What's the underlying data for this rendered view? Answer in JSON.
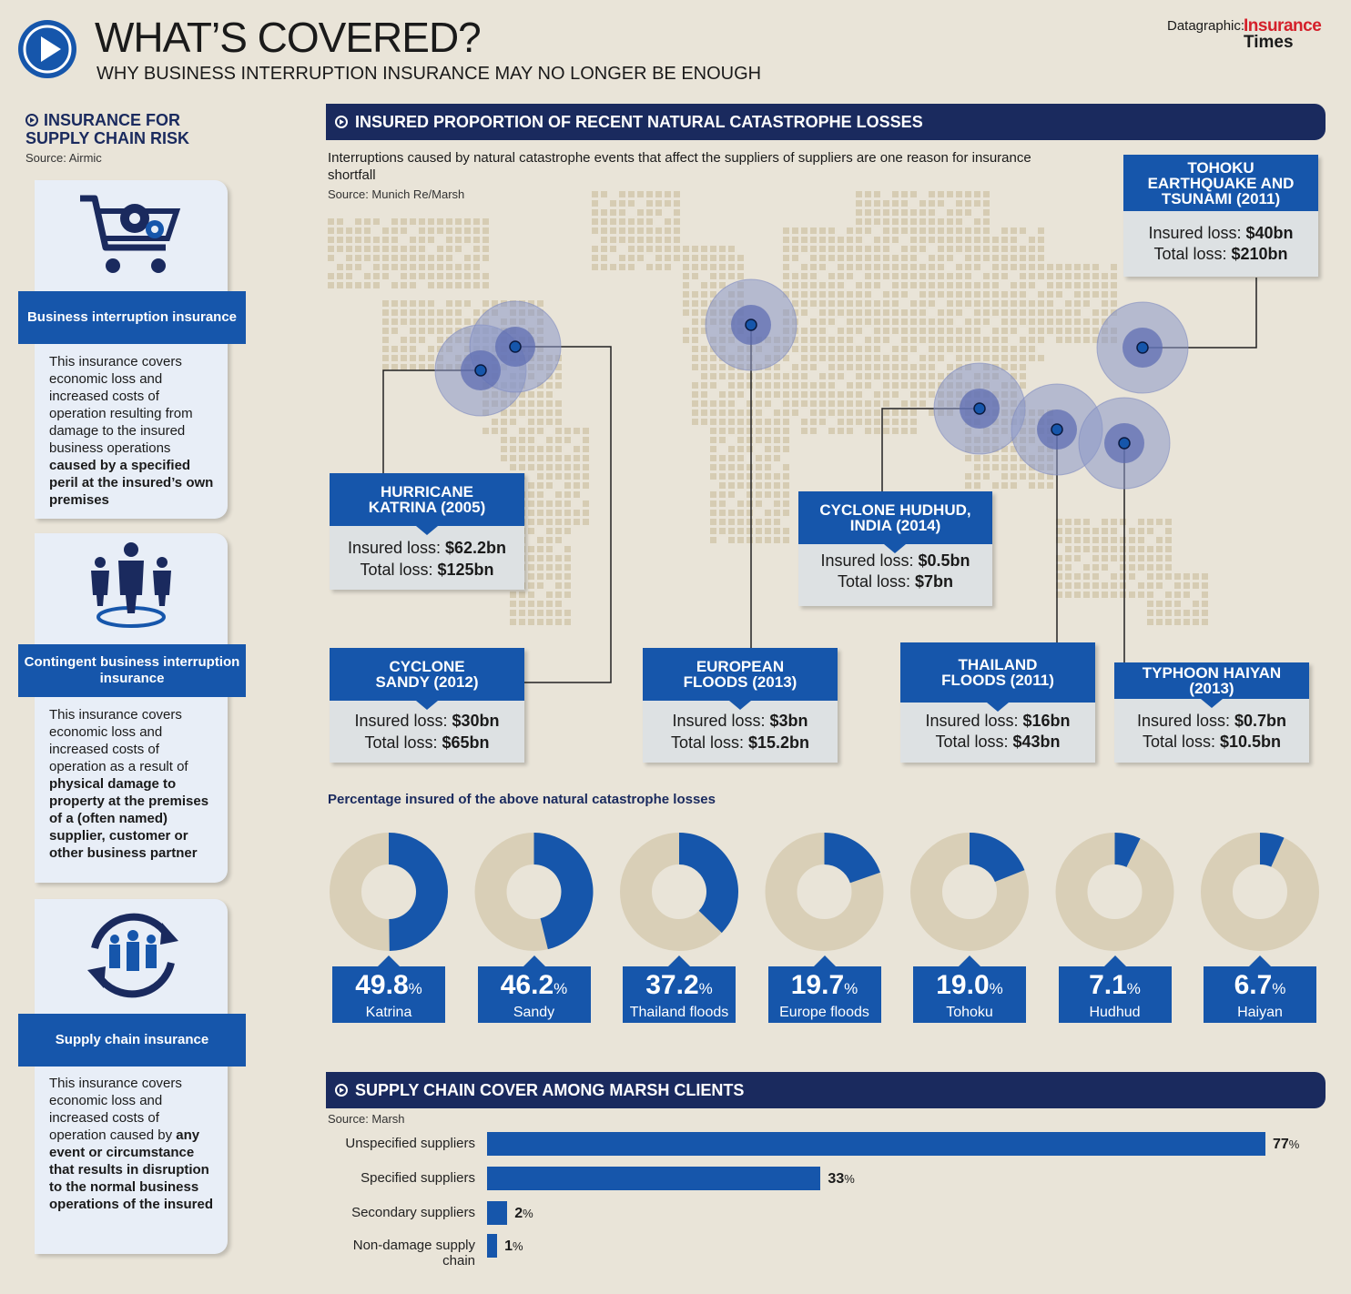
{
  "header": {
    "title": "WHAT’S COVERED?",
    "subtitle": "WHY BUSINESS INTERRUPTION INSURANCE MAY NO LONGER BE ENOUGH",
    "brand_prefix": "Datagraphic:",
    "brand_line1": "Insurance",
    "brand_line2": "Times"
  },
  "sidebar": {
    "heading_line1": "INSURANCE FOR",
    "heading_line2": "SUPPLY CHAIN RISK",
    "source": "Source: Airmic",
    "cards": [
      {
        "icon": "shopping-cart-gears-icon",
        "title": "Business interruption insurance",
        "text": "This insurance covers economic loss and increased costs of operation resulting from damage to the insured business operations",
        "bold": "caused by a specified peril at the insured’s own premises"
      },
      {
        "icon": "business-people-network-icon",
        "title": "Contingent business interruption insurance",
        "text": "This insurance covers economic loss and increased costs of operation as a result of",
        "bold": "physical damage to property at the premises of a (often named) supplier, customer or other business partner"
      },
      {
        "icon": "people-cycle-arrows-icon",
        "title": "Supply chain insurance",
        "text": "This insurance covers economic loss and increased costs of operation caused by",
        "bold": "any event or circumstance that results in disruption to the normal business operations of the insured"
      }
    ]
  },
  "map_section": {
    "banner": "INSURED PROPORTION OF RECENT NATURAL CATASTROPHE LOSSES",
    "description": "Interruptions caused by natural catastrophe events that affect the suppliers of suppliers are one reason for insurance shortfall",
    "source": "Source: Munich Re/Marsh",
    "insured_label": "Insured loss:",
    "total_label": "Total loss:",
    "events": [
      {
        "name": "HURRICANE KATRINA (2005)",
        "insured": "$62.2bn",
        "total": "$125bn"
      },
      {
        "name": "CYCLONE SANDY (2012)",
        "insured": "$30bn",
        "total": "$65bn"
      },
      {
        "name": "EUROPEAN FLOODS (2013)",
        "insured": "$3bn",
        "total": "$15.2bn"
      },
      {
        "name": "CYCLONE HUDHUD, INDIA (2014)",
        "insured": "$0.5bn",
        "total": "$7bn"
      },
      {
        "name": "THAILAND FLOODS (2011)",
        "insured": "$16bn",
        "total": "$43bn"
      },
      {
        "name": "TYPHOON HAIYAN (2013)",
        "insured": "$0.7bn",
        "total": "$10.5bn"
      },
      {
        "name": "TOHOKU EARTHQUAKE AND TSUNAMI (2011)",
        "insured": "$40bn",
        "total": "$210bn"
      }
    ]
  },
  "donut_section": {
    "heading": "Percentage insured of the above natural catastrophe losses",
    "unit": "%"
  },
  "bar_section": {
    "banner": "SUPPLY CHAIN COVER AMONG MARSH CLIENTS",
    "source": "Source: Marsh",
    "unit": "%"
  },
  "colors": {
    "navy": "#1a2a5e",
    "blue": "#1656ab",
    "beige_track": "#d9cfb7",
    "background": "#e9e4d8",
    "brand_red": "#d4202a"
  },
  "chart_data": [
    {
      "type": "pie",
      "title": "Percentage insured of the above natural catastrophe losses",
      "categories": [
        "Katrina",
        "Sandy",
        "Thailand floods",
        "Europe floods",
        "Tohoku",
        "Hudhud",
        "Haiyan"
      ],
      "values": [
        49.8,
        46.2,
        37.2,
        19.7,
        19.0,
        7.1,
        6.7
      ],
      "display": [
        "49.8",
        "46.2",
        "37.2",
        "19.7",
        "19.0",
        "7.1",
        "6.7"
      ]
    },
    {
      "type": "bar",
      "title": "SUPPLY CHAIN COVER AMONG MARSH CLIENTS",
      "categories": [
        "Unspecified suppliers",
        "Specified suppliers",
        "Secondary suppliers",
        "Non-damage supply chain"
      ],
      "values": [
        77,
        33,
        2,
        1
      ],
      "display": [
        "77",
        "33",
        "2",
        "1"
      ]
    }
  ]
}
